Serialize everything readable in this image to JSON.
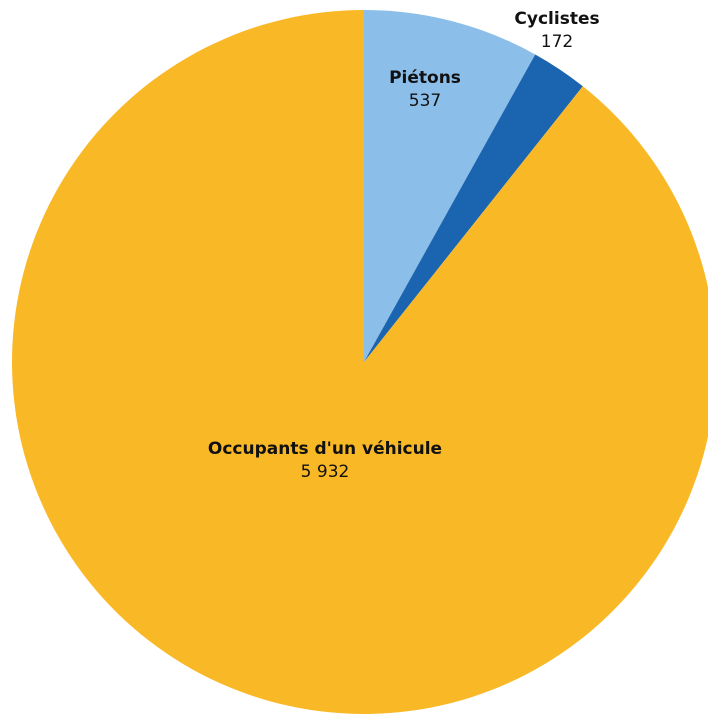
{
  "chart_data": {
    "type": "pie",
    "categories": [
      "Piétons",
      "Cyclistes",
      "Occupants d'un véhicule"
    ],
    "values": [
      537,
      172,
      5932
    ],
    "value_labels": [
      "537",
      "172",
      "5 932"
    ],
    "colors": [
      "#8bbee8",
      "#1a64b0",
      "#f9b826"
    ]
  }
}
